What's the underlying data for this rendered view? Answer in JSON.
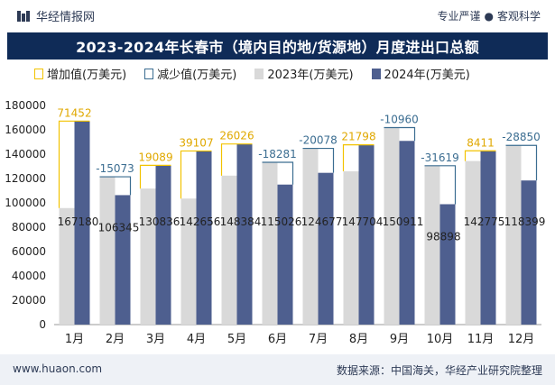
{
  "header": {
    "brand": "华经情报网",
    "tagline_1": "专业严谨",
    "tagline_sep": "●",
    "tagline_2": "客观科学"
  },
  "title": "2023-2024年长春市（境内目的地/货源地）月度进出口总额",
  "legend": {
    "increase": "增加值(万美元)",
    "decrease": "减少值(万美元)",
    "y2023": "2023年(万美元)",
    "y2024": "2024年(万美元)"
  },
  "footer": {
    "website": "www.huaon.com",
    "source": "数据来源：中国海关，华经产业研究院整理"
  },
  "colors": {
    "y2023": "#d9d9d9",
    "y2024": "#4e5f8f",
    "increase": "#f2c300",
    "decrease": "#3b6d91",
    "title_bg": "#0f2b57"
  },
  "chart_data": {
    "type": "bar",
    "categories": [
      "1月",
      "2月",
      "3月",
      "4月",
      "5月",
      "6月",
      "7月",
      "8月",
      "9月",
      "10月",
      "11月",
      "12月"
    ],
    "series": [
      {
        "name": "2023年(万美元)",
        "values": [
          95728,
          121418,
          111747,
          103549,
          122358,
          133307,
          144755,
          125906,
          161871,
          130517,
          134364,
          147249
        ]
      },
      {
        "name": "2024年(万美元)",
        "values": [
          167180,
          106345,
          130836,
          142656,
          148384,
          115026,
          124677,
          147704,
          150911,
          98898,
          142775,
          118399
        ]
      }
    ],
    "difference": [
      71452,
      -15073,
      19089,
      39107,
      26026,
      -18281,
      -20078,
      21798,
      -10960,
      -31619,
      8411,
      -28850
    ],
    "difference_labels": [
      "71452",
      "-15073",
      "19089",
      "39107",
      "26026",
      "-18281",
      "-20078",
      "21798",
      "-10960",
      "-31619",
      "8411",
      "-28850"
    ],
    "value_labels_2024": [
      "167180",
      "106345",
      "130836",
      "142656",
      "148384",
      "115026",
      "124677",
      "147704",
      "150911",
      "98898",
      "142775",
      "118399"
    ],
    "y_ticks": [
      "0",
      "20000",
      "40000",
      "60000",
      "80000",
      "100000",
      "120000",
      "140000",
      "160000",
      "180000"
    ],
    "ylim": [
      0,
      180000
    ]
  }
}
